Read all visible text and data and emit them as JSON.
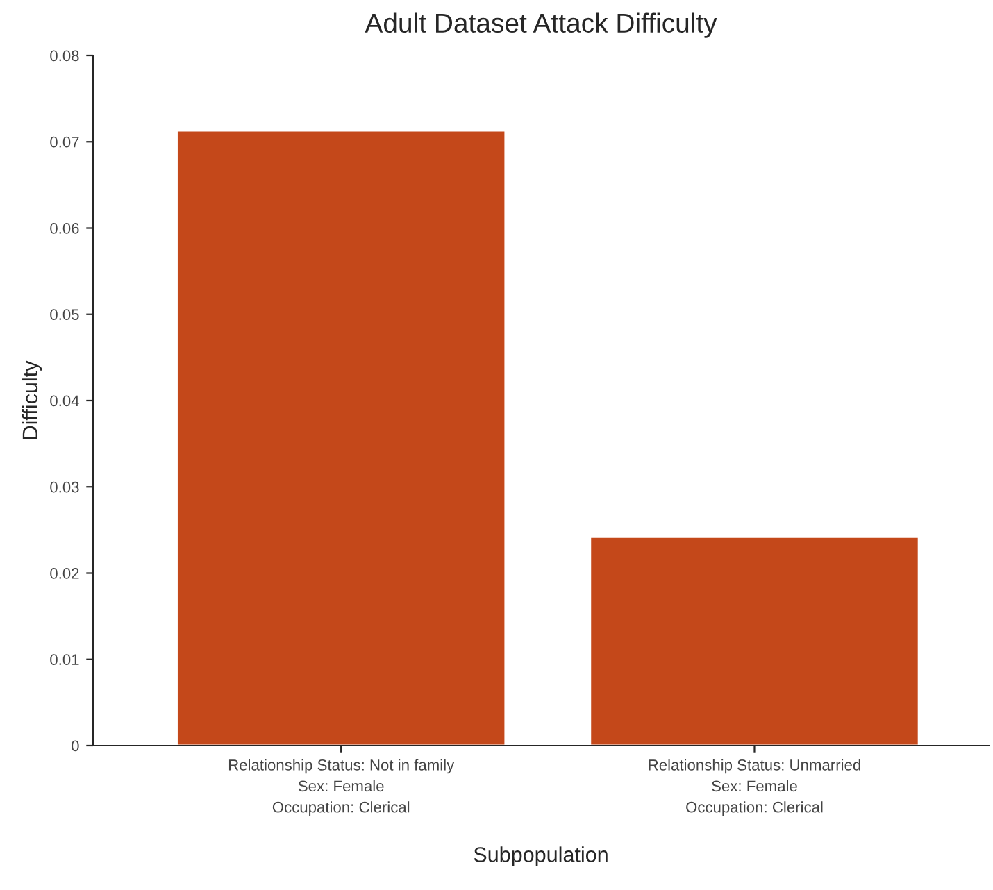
{
  "chart_data": {
    "type": "bar",
    "title": "Adult Dataset Attack Difficulty",
    "xlabel": "Subpopulation",
    "ylabel": "Difficulty",
    "categories": [
      "Relationship Status: Not in family\nSex: Female\nOccupation: Clerical",
      "Relationship Status: Unmarried\nSex: Female\nOccupation: Clerical"
    ],
    "values": [
      0.0713,
      0.0242
    ],
    "color": "#c4481a",
    "ylim": [
      0,
      0.08
    ],
    "yticks": [
      0,
      0.01,
      0.02,
      0.03,
      0.04,
      0.05,
      0.06,
      0.07,
      0.08
    ],
    "grid": false,
    "legend": false
  }
}
